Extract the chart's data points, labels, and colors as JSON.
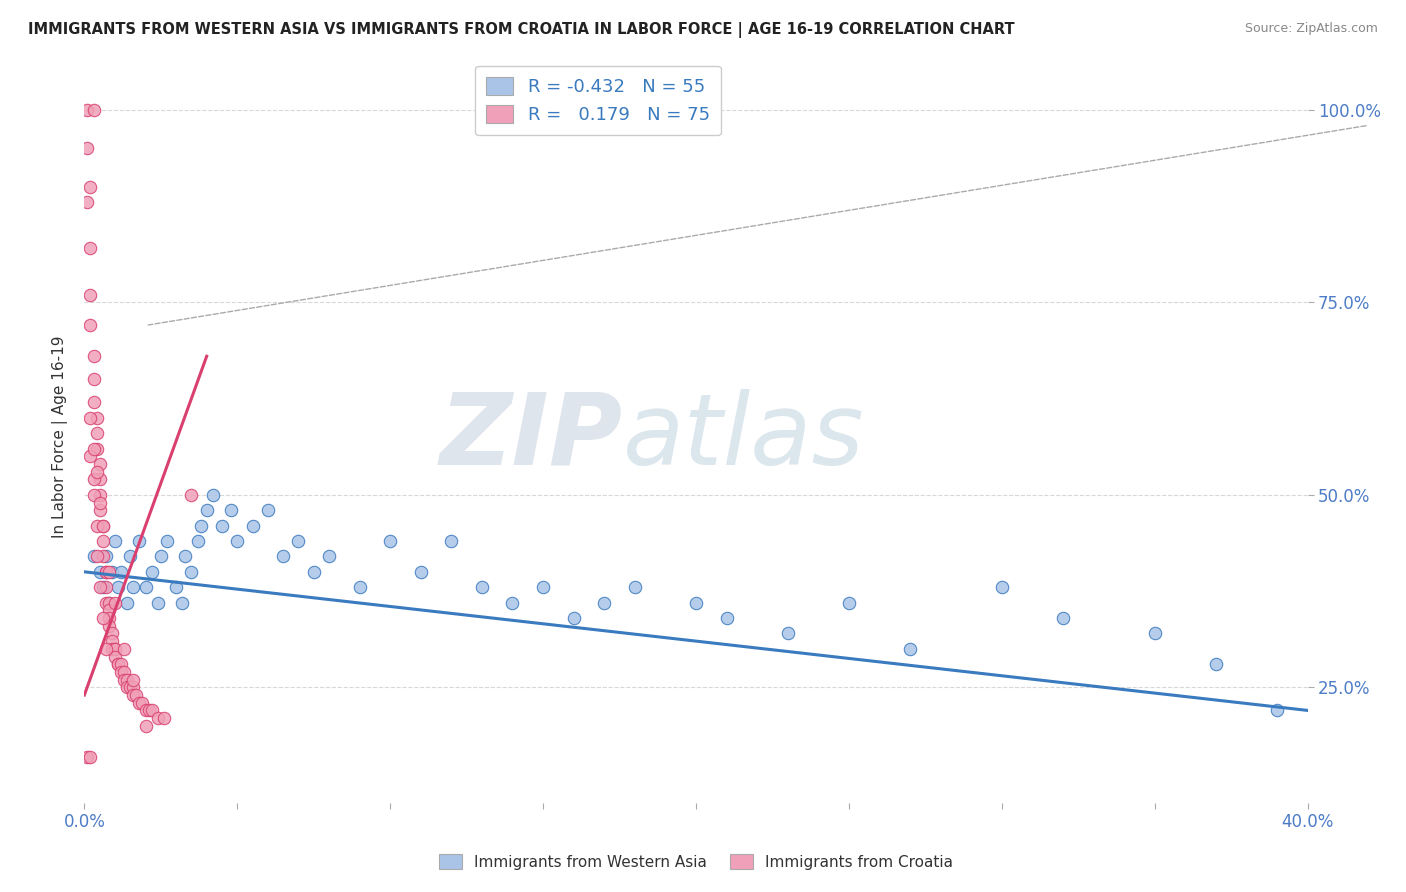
{
  "title": "IMMIGRANTS FROM WESTERN ASIA VS IMMIGRANTS FROM CROATIA IN LABOR FORCE | AGE 16-19 CORRELATION CHART",
  "source": "Source: ZipAtlas.com",
  "xlabel_legend1": "Immigrants from Western Asia",
  "xlabel_legend2": "Immigrants from Croatia",
  "ylabel": "In Labor Force | Age 16-19",
  "xlim": [
    0.0,
    0.4
  ],
  "ylim": [
    0.1,
    1.05
  ],
  "yticks": [
    0.25,
    0.5,
    0.75,
    1.0
  ],
  "ytick_labels": [
    "25.0%",
    "50.0%",
    "75.0%",
    "100.0%"
  ],
  "xticks": [
    0.0,
    0.05,
    0.1,
    0.15,
    0.2,
    0.25,
    0.3,
    0.35,
    0.4
  ],
  "xtick_labels": [
    "0.0%",
    "",
    "",
    "",
    "",
    "",
    "",
    "",
    "40.0%"
  ],
  "R_blue": -0.432,
  "N_blue": 55,
  "R_pink": 0.179,
  "N_pink": 75,
  "blue_color": "#aac4e8",
  "pink_color": "#f0a0b8",
  "blue_line_color": "#3a7abf",
  "pink_line_color": "#d94070",
  "blue_scatter": [
    [
      0.003,
      0.42
    ],
    [
      0.005,
      0.4
    ],
    [
      0.006,
      0.38
    ],
    [
      0.007,
      0.42
    ],
    [
      0.008,
      0.36
    ],
    [
      0.009,
      0.4
    ],
    [
      0.01,
      0.44
    ],
    [
      0.011,
      0.38
    ],
    [
      0.012,
      0.4
    ],
    [
      0.014,
      0.36
    ],
    [
      0.015,
      0.42
    ],
    [
      0.016,
      0.38
    ],
    [
      0.018,
      0.44
    ],
    [
      0.02,
      0.38
    ],
    [
      0.022,
      0.4
    ],
    [
      0.024,
      0.36
    ],
    [
      0.025,
      0.42
    ],
    [
      0.027,
      0.44
    ],
    [
      0.03,
      0.38
    ],
    [
      0.032,
      0.36
    ],
    [
      0.033,
      0.42
    ],
    [
      0.035,
      0.4
    ],
    [
      0.037,
      0.44
    ],
    [
      0.038,
      0.46
    ],
    [
      0.04,
      0.48
    ],
    [
      0.042,
      0.5
    ],
    [
      0.045,
      0.46
    ],
    [
      0.048,
      0.48
    ],
    [
      0.05,
      0.44
    ],
    [
      0.055,
      0.46
    ],
    [
      0.06,
      0.48
    ],
    [
      0.065,
      0.42
    ],
    [
      0.07,
      0.44
    ],
    [
      0.075,
      0.4
    ],
    [
      0.08,
      0.42
    ],
    [
      0.09,
      0.38
    ],
    [
      0.1,
      0.44
    ],
    [
      0.11,
      0.4
    ],
    [
      0.12,
      0.44
    ],
    [
      0.13,
      0.38
    ],
    [
      0.14,
      0.36
    ],
    [
      0.15,
      0.38
    ],
    [
      0.16,
      0.34
    ],
    [
      0.17,
      0.36
    ],
    [
      0.18,
      0.38
    ],
    [
      0.2,
      0.36
    ],
    [
      0.21,
      0.34
    ],
    [
      0.23,
      0.32
    ],
    [
      0.25,
      0.36
    ],
    [
      0.27,
      0.3
    ],
    [
      0.3,
      0.38
    ],
    [
      0.32,
      0.34
    ],
    [
      0.35,
      0.32
    ],
    [
      0.37,
      0.28
    ],
    [
      0.39,
      0.22
    ]
  ],
  "pink_scatter": [
    [
      0.001,
      1.0
    ],
    [
      0.003,
      1.0
    ],
    [
      0.001,
      0.88
    ],
    [
      0.002,
      0.82
    ],
    [
      0.002,
      0.76
    ],
    [
      0.002,
      0.72
    ],
    [
      0.003,
      0.68
    ],
    [
      0.003,
      0.65
    ],
    [
      0.003,
      0.62
    ],
    [
      0.004,
      0.6
    ],
    [
      0.004,
      0.58
    ],
    [
      0.004,
      0.56
    ],
    [
      0.005,
      0.54
    ],
    [
      0.005,
      0.52
    ],
    [
      0.005,
      0.5
    ],
    [
      0.005,
      0.48
    ],
    [
      0.006,
      0.46
    ],
    [
      0.006,
      0.44
    ],
    [
      0.006,
      0.42
    ],
    [
      0.007,
      0.4
    ],
    [
      0.007,
      0.4
    ],
    [
      0.007,
      0.38
    ],
    [
      0.007,
      0.36
    ],
    [
      0.008,
      0.36
    ],
    [
      0.008,
      0.35
    ],
    [
      0.008,
      0.34
    ],
    [
      0.008,
      0.33
    ],
    [
      0.009,
      0.32
    ],
    [
      0.009,
      0.31
    ],
    [
      0.009,
      0.3
    ],
    [
      0.01,
      0.3
    ],
    [
      0.01,
      0.3
    ],
    [
      0.01,
      0.29
    ],
    [
      0.011,
      0.28
    ],
    [
      0.011,
      0.28
    ],
    [
      0.012,
      0.28
    ],
    [
      0.012,
      0.27
    ],
    [
      0.013,
      0.27
    ],
    [
      0.013,
      0.26
    ],
    [
      0.014,
      0.26
    ],
    [
      0.014,
      0.25
    ],
    [
      0.015,
      0.25
    ],
    [
      0.016,
      0.25
    ],
    [
      0.016,
      0.24
    ],
    [
      0.017,
      0.24
    ],
    [
      0.018,
      0.23
    ],
    [
      0.019,
      0.23
    ],
    [
      0.02,
      0.22
    ],
    [
      0.021,
      0.22
    ],
    [
      0.022,
      0.22
    ],
    [
      0.024,
      0.21
    ],
    [
      0.026,
      0.21
    ],
    [
      0.004,
      0.42
    ],
    [
      0.005,
      0.38
    ],
    [
      0.006,
      0.34
    ],
    [
      0.007,
      0.3
    ],
    [
      0.003,
      0.5
    ],
    [
      0.004,
      0.46
    ],
    [
      0.035,
      0.5
    ],
    [
      0.002,
      0.55
    ],
    [
      0.003,
      0.52
    ],
    [
      0.002,
      0.6
    ],
    [
      0.003,
      0.56
    ],
    [
      0.004,
      0.53
    ],
    [
      0.005,
      0.49
    ],
    [
      0.006,
      0.46
    ],
    [
      0.008,
      0.4
    ],
    [
      0.01,
      0.36
    ],
    [
      0.013,
      0.3
    ],
    [
      0.016,
      0.26
    ],
    [
      0.02,
      0.2
    ],
    [
      0.001,
      0.95
    ],
    [
      0.002,
      0.9
    ],
    [
      0.001,
      0.16
    ],
    [
      0.002,
      0.16
    ]
  ],
  "watermark_zip": "ZIP",
  "watermark_atlas": "atlas",
  "background_color": "#ffffff",
  "grid_color": "#d8d8d8"
}
